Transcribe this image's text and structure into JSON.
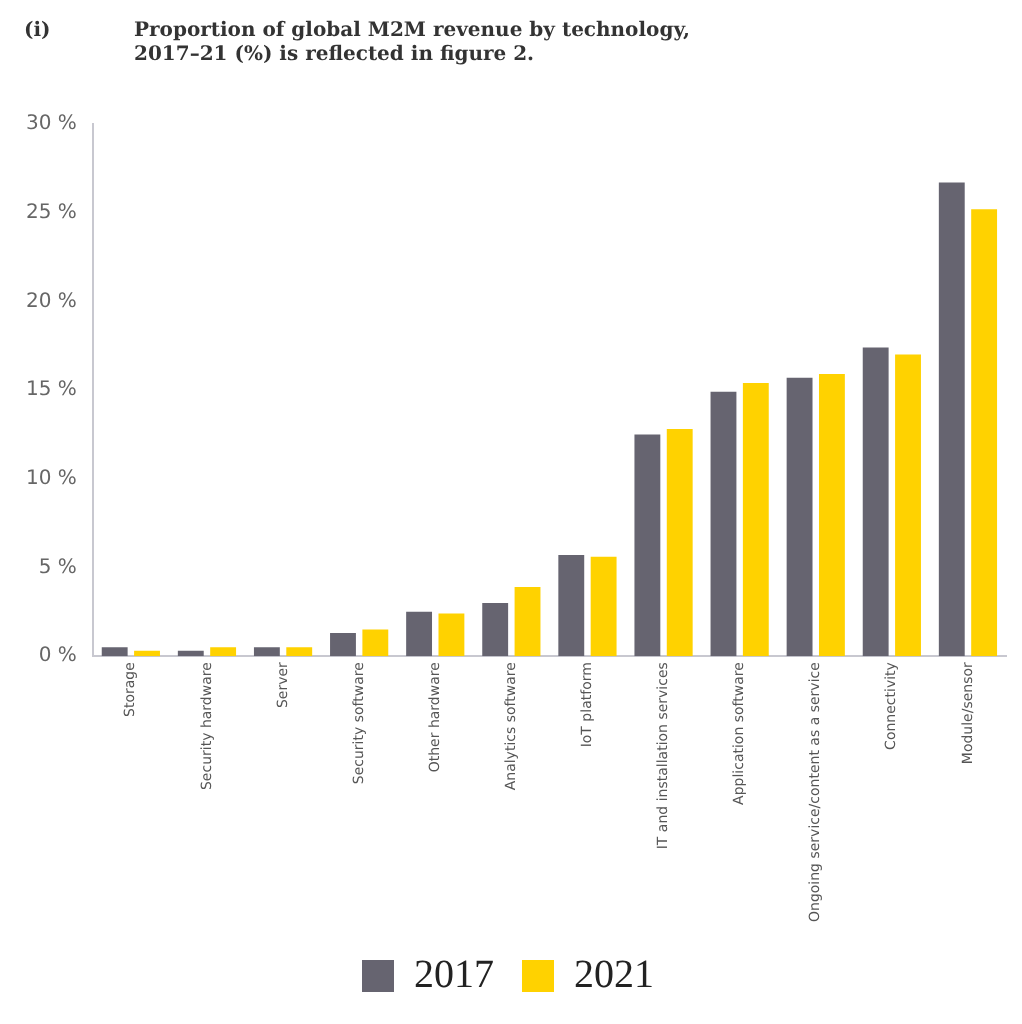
{
  "chart_data": {
    "type": "bar",
    "title": "Proportion of global M2M revenue by technology, 2017–21 (%) is reflected in figure 2.",
    "annotations": [
      "(i)"
    ],
    "categories": [
      "Storage",
      "Security hardware",
      "Server",
      "Security software",
      "Other hardware",
      "Analytics software",
      "IoT platform",
      "IT and installation services",
      "Application software",
      "Ongoing service/content as a service",
      "Connectivity",
      "Module/sensor"
    ],
    "series": [
      {
        "name": "2017",
        "color": "#666470",
        "values": [
          0.5,
          0.3,
          0.5,
          1.3,
          2.5,
          3.0,
          5.7,
          12.5,
          14.9,
          15.7,
          17.4,
          26.7
        ]
      },
      {
        "name": "2021",
        "color": "#ffd200",
        "values": [
          0.3,
          0.5,
          0.5,
          1.5,
          2.4,
          3.9,
          5.6,
          12.8,
          15.4,
          15.9,
          17.0,
          25.2
        ]
      }
    ],
    "ylim": [
      0,
      30
    ],
    "yticks": [
      {
        "value": 0,
        "label": "0 %"
      },
      {
        "value": 5,
        "label": "5 %"
      },
      {
        "value": 10,
        "label": "10 %"
      },
      {
        "value": 15,
        "label": "15 %"
      },
      {
        "value": 20,
        "label": "20 %"
      },
      {
        "value": 25,
        "label": "25 %"
      },
      {
        "value": 30,
        "label": "30 %"
      }
    ],
    "grid": false,
    "legend": "bottom"
  }
}
